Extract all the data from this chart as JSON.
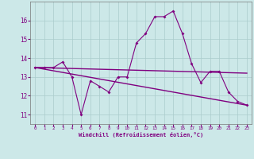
{
  "x": [
    0,
    1,
    2,
    3,
    4,
    5,
    6,
    7,
    8,
    9,
    10,
    11,
    12,
    13,
    14,
    15,
    16,
    17,
    18,
    19,
    20,
    21,
    22,
    23
  ],
  "y_main": [
    13.5,
    13.5,
    13.5,
    13.8,
    13.0,
    11.0,
    12.8,
    12.5,
    12.2,
    13.0,
    13.0,
    14.8,
    15.3,
    16.2,
    16.2,
    16.5,
    15.3,
    13.7,
    12.7,
    13.3,
    13.3,
    12.2,
    11.7,
    11.5
  ],
  "line_color": "#800080",
  "bg_color": "#cce8e8",
  "grid_color": "#aacccc",
  "xlabel": "Windchill (Refroidissement éolien,°C)",
  "yticks": [
    11,
    12,
    13,
    14,
    15,
    16
  ],
  "xticks": [
    0,
    1,
    2,
    3,
    4,
    5,
    6,
    7,
    8,
    9,
    10,
    11,
    12,
    13,
    14,
    15,
    16,
    17,
    18,
    19,
    20,
    21,
    22,
    23
  ],
  "ylim": [
    10.5,
    17.0
  ],
  "xlim": [
    -0.5,
    23.5
  ],
  "trend1_x": [
    0,
    23
  ],
  "trend1_y": [
    13.5,
    13.2
  ],
  "trend2_x": [
    0,
    23
  ],
  "trend2_y": [
    13.5,
    11.5
  ]
}
